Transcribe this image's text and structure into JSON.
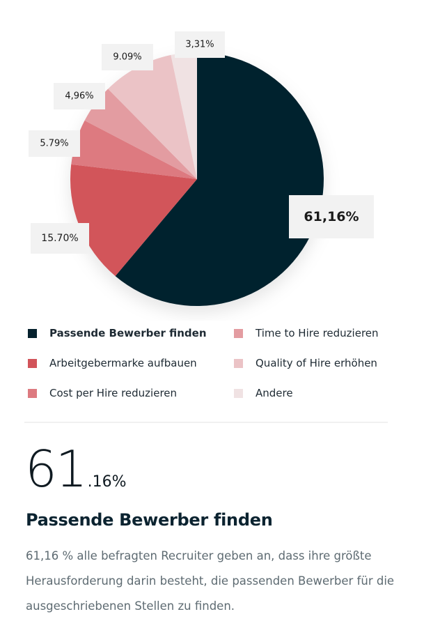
{
  "chart_data": {
    "type": "pie",
    "labels": [
      "Passende Bewerber finden",
      "Arbeitgebermarke aufbauen",
      "Cost per Hire reduzieren",
      "Time to Hire reduzieren",
      "Quality of Hire erhöhen",
      "Andere"
    ],
    "values": [
      61.16,
      15.7,
      5.79,
      4.96,
      9.09,
      3.31
    ],
    "display_labels": [
      "61,16%",
      "15.70%",
      "5.79%",
      "4,96%",
      "9.09%",
      "3,31%"
    ],
    "colors": [
      "#06222e",
      "#d2545a",
      "#dd7a80",
      "#e39ca1",
      "#ebc3c6",
      "#f0e2e3"
    ],
    "start_angle_deg": 0,
    "direction": "clockwise",
    "highlighted_index": 0,
    "legend_position": "bottom"
  },
  "legend": {
    "items": [
      {
        "label": "Passende Bewerber finden",
        "color": "#06222e"
      },
      {
        "label": "Arbeitgebermarke aufbauen",
        "color": "#d2545a"
      },
      {
        "label": "Cost per Hire reduzieren",
        "color": "#dd7a80"
      },
      {
        "label": "Time to Hire reduzieren",
        "color": "#e39ca1"
      },
      {
        "label": "Quality of Hire erhöhen",
        "color": "#ebc3c6"
      },
      {
        "label": "Andere",
        "color": "#f0e2e3"
      }
    ]
  },
  "detail": {
    "number_int": "61",
    "number_dec": ".16%",
    "title": "Passende Bewerber finden",
    "text": "61,16 % alle befragten Recruiter geben an, dass ihre größte Herausforderung darin besteht, die passenden Bewerber für die ausgeschriebenen Stellen zu finden."
  }
}
